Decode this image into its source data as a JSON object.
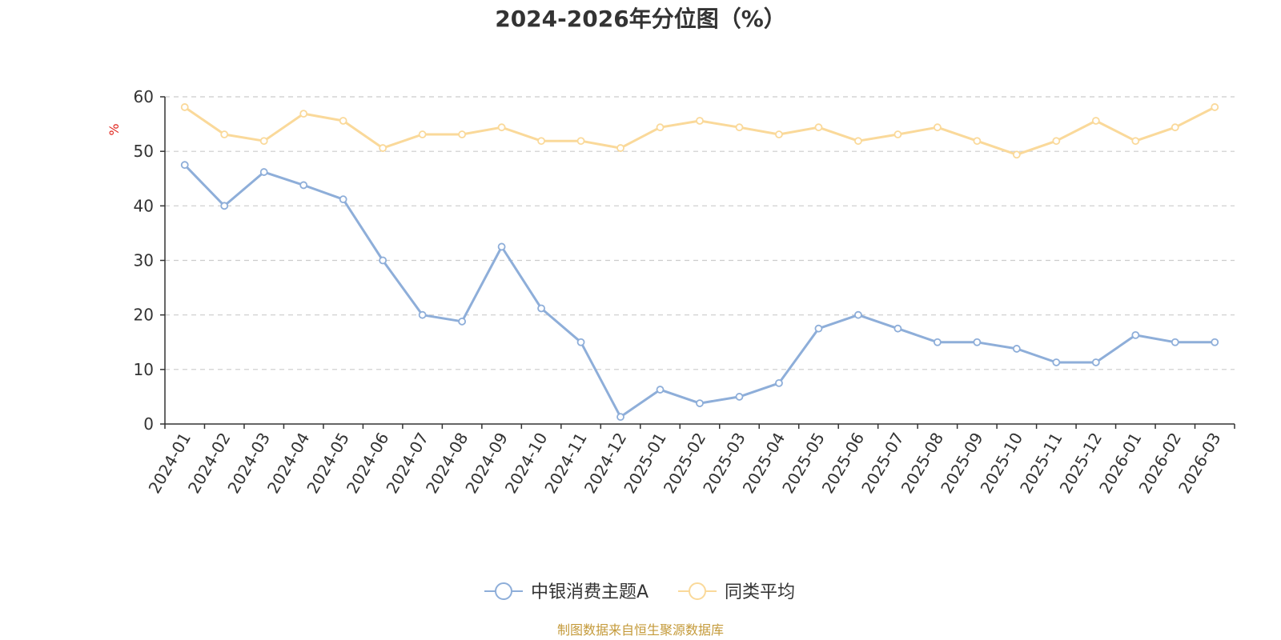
{
  "chart_data": {
    "type": "line",
    "title": "2024-2026年分位图（%）",
    "ylabel": "%",
    "ylim": [
      0,
      60
    ],
    "yticks": [
      0,
      10,
      20,
      30,
      40,
      50,
      60
    ],
    "grid": true,
    "legend_position": "bottom-center",
    "categories": [
      "2024-01",
      "2024-02",
      "2024-03",
      "2024-04",
      "2024-05",
      "2024-06",
      "2024-07",
      "2024-08",
      "2024-09",
      "2024-10",
      "2024-11",
      "2024-12",
      "2025-01",
      "2025-02",
      "2025-03",
      "2025-04",
      "2025-05",
      "2025-06",
      "2025-07",
      "2025-08",
      "2025-09",
      "2025-10",
      "2025-11",
      "2025-12",
      "2026-01",
      "2026-02",
      "2026-03"
    ],
    "series": [
      {
        "name": "中银消费主题A",
        "color": "#8eaed9",
        "values": [
          47.5,
          40,
          46.2,
          43.8,
          41.2,
          30,
          20,
          18.8,
          32.5,
          21.2,
          15,
          1.3,
          6.3,
          3.8,
          5,
          7.5,
          17.5,
          20,
          17.5,
          15,
          15,
          13.8,
          11.3,
          11.3,
          16.3,
          15,
          15
        ]
      },
      {
        "name": "同类平均",
        "color": "#fad99a",
        "values": [
          58.1,
          53.1,
          51.9,
          56.9,
          55.6,
          50.6,
          53.1,
          53.1,
          54.4,
          51.9,
          51.9,
          50.6,
          54.4,
          55.6,
          54.4,
          53.1,
          54.4,
          51.9,
          53.1,
          54.4,
          51.9,
          49.4,
          51.9,
          55.6,
          51.9,
          54.4,
          58.1
        ]
      }
    ],
    "colors": {
      "axis": "#333333",
      "grid": "#cccccc",
      "unit": "#e0261e",
      "source": "#c49a3a"
    }
  },
  "footer": {
    "source": "制图数据来自恒生聚源数据库"
  }
}
